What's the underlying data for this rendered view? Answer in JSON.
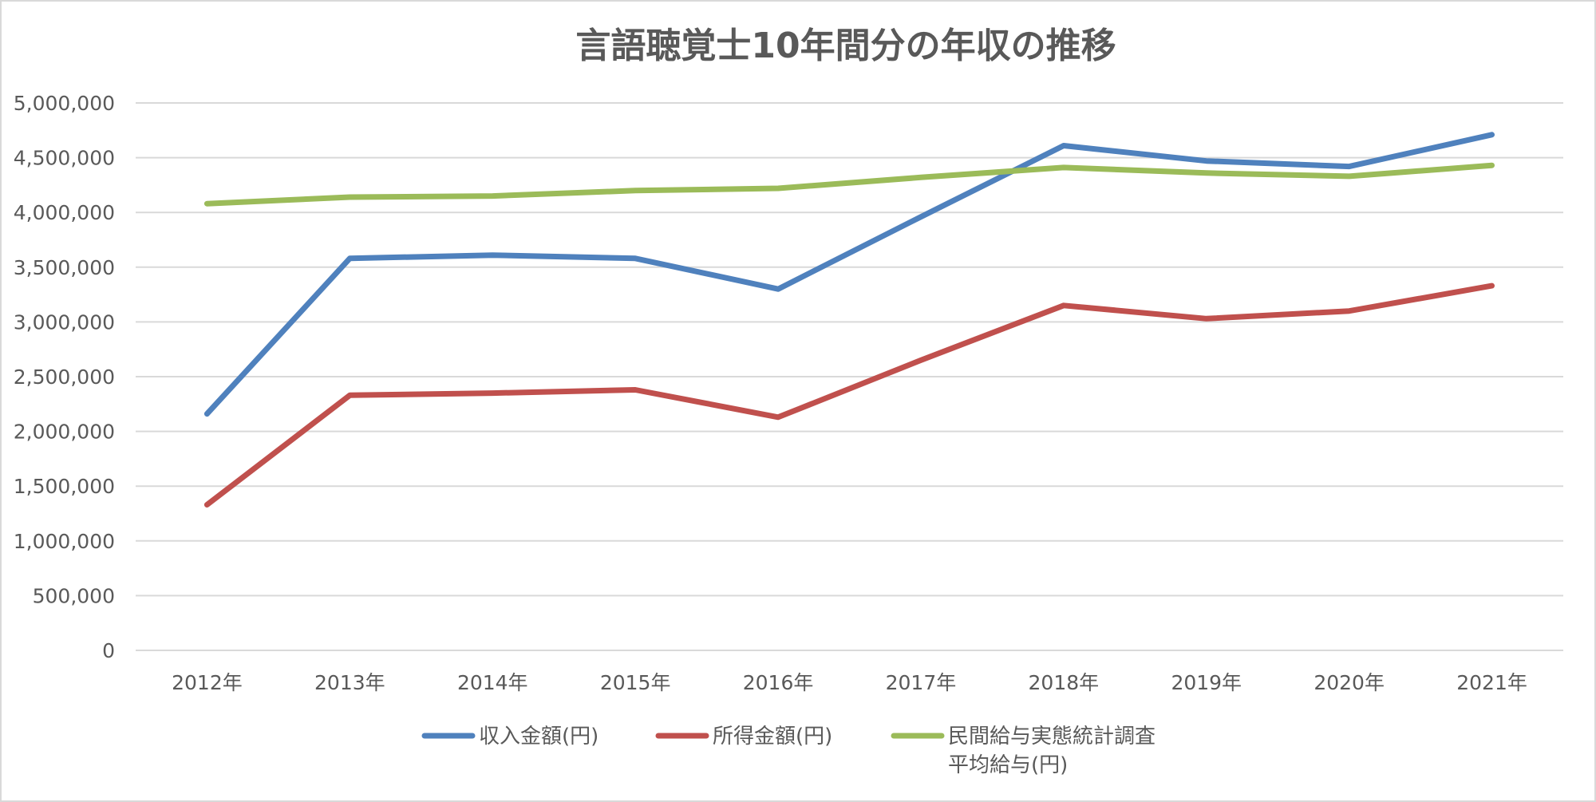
{
  "chart_data": {
    "type": "line",
    "title": "言語聴覚士10年間分の年収の推移",
    "categories": [
      "2012年",
      "2013年",
      "2014年",
      "2015年",
      "2016年",
      "2017年",
      "2018年",
      "2019年",
      "2020年",
      "2021年"
    ],
    "y_ticks": [
      "0",
      "500,000",
      "1,000,000",
      "1,500,000",
      "2,000,000",
      "2,500,000",
      "3,000,000",
      "3,500,000",
      "4,000,000",
      "4,500,000",
      "5,000,000"
    ],
    "ylim": [
      0,
      5000000
    ],
    "y_tick_step": 500000,
    "grid": true,
    "legend_position": "bottom",
    "series": [
      {
        "name": "収入金額(円)",
        "color": "#4f81bd",
        "values": [
          2160000,
          3580000,
          3610000,
          3580000,
          3300000,
          3960000,
          4610000,
          4470000,
          4420000,
          4710000
        ]
      },
      {
        "name": "所得金額(円)",
        "color": "#c0504d",
        "values": [
          1330000,
          2330000,
          2350000,
          2380000,
          2130000,
          2650000,
          3150000,
          3030000,
          3100000,
          3330000
        ]
      },
      {
        "name": "民間給与実態統計調査平均給与(円)",
        "legend_lines": [
          "民間給与実態統計調査",
          "平均給与(円)"
        ],
        "color": "#9bbb59",
        "values": [
          4080000,
          4140000,
          4150000,
          4200000,
          4220000,
          4320000,
          4410000,
          4360000,
          4330000,
          4430000
        ]
      }
    ]
  }
}
